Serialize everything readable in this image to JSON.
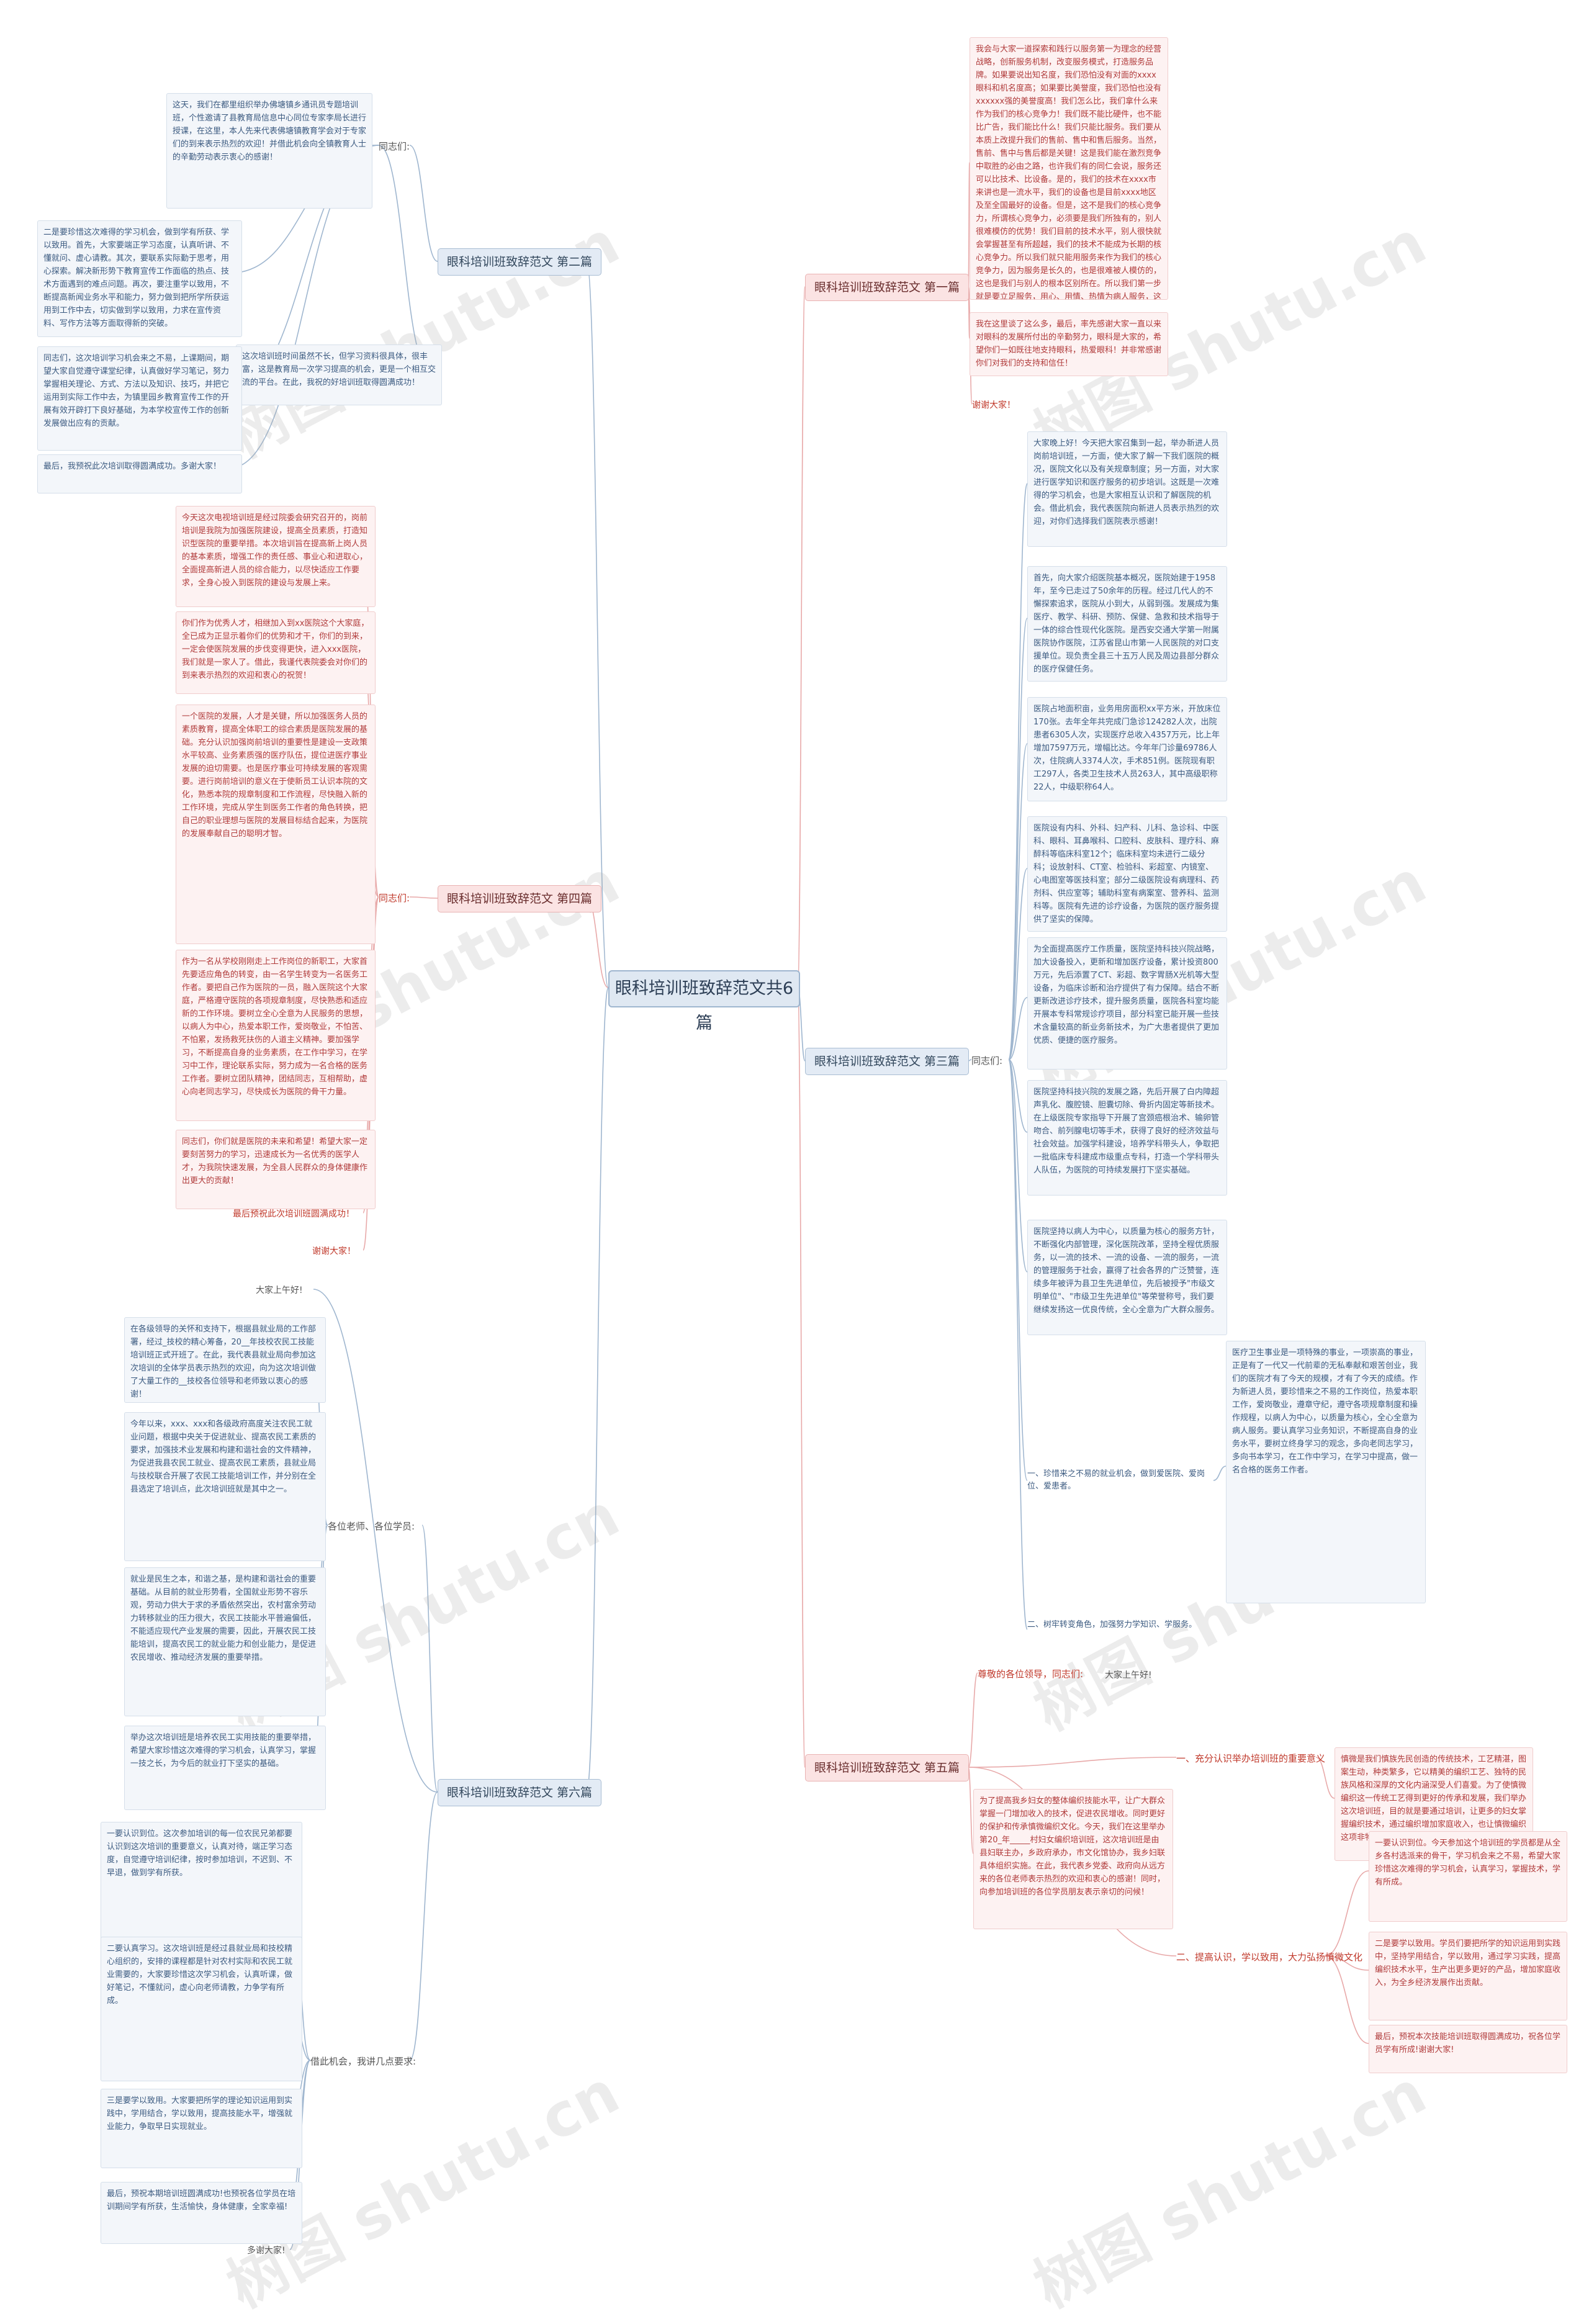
{
  "root": "眼科培训班致辞范文共6篇",
  "watermark": "树图 shutu.cn",
  "branches": [
    {
      "id": "b1",
      "label": "眼科培训班致辞范文 第一篇",
      "tone": "pink"
    },
    {
      "id": "b2",
      "label": "眼科培训班致辞范文 第二篇",
      "tone": "blue"
    },
    {
      "id": "b3",
      "label": "眼科培训班致辞范文 第三篇",
      "tone": "blue"
    },
    {
      "id": "b4",
      "label": "眼科培训班致辞范文 第四篇",
      "tone": "pink"
    },
    {
      "id": "b5",
      "label": "眼科培训班致辞范文 第五篇",
      "tone": "pink"
    },
    {
      "id": "b6",
      "label": "眼科培训班致辞范文 第六篇",
      "tone": "blue"
    }
  ],
  "labels": {
    "b2_greet": "同志们:",
    "b3_greet": "同志们:",
    "b4_greet": "同志们:",
    "b5_greet": "尊敬的各位领导，同志们:",
    "b5_greet_tail": "大家上午好!",
    "b6_greet": "大家上午好!",
    "b6_sub1": "各位老师、各位学员:",
    "b6_sub2": "借此机会，我讲几点要求:",
    "b3_sub1": "一、珍惜来之不易的就业机会，做到爱医院、爱岗位、爱患者。",
    "b3_sub2": "二、树牢转变角色，加强努力学知识、学服务。",
    "b5_sub1": "一、充分认识举办培训班的重要意义",
    "b5_sub2": "二、提高认识，学以致用，大力弘扬慎微文化"
  },
  "notes": {
    "b1_1": "我会与大家一道探索和践行以服务第一为理念的经营战略，创新服务机制，改变服务模式，打造服务品牌。如果要说出知名度，我们恐怕没有对面的xxxx眼科和机名度高；如果要比美誉度，我们恐怕也没有xxxxxx强的美誉度高！我们怎么比，我们拿什么来作为我们的核心竞争力！我们既不能比硬件，也不能比广告，我们能比什么！我们只能比服务。我们要从本质上改提升我们的售前、售中和售后服务。当然，售前、售中与售后都是关键！这是我们能在激烈竞争中取胜的必由之路，也许我们有的同仁会说，服务还可以比技术、比设备。是的，我们的技术在xxxx市来讲也是一流水平，我们的设备也是目前xxxx地区及至全国最好的设备。但是，这不是我们的核心竞争力，所谓核心竞争力，必须要是我们所独有的，别人很难模仿的优势！我们目前的技术水平，别人很快就会掌握甚至有所超越，我们的技术不能成为长期的核心竞争力。所以我们就只能用服务来作为我们的核心竞争力，因为服务是长久的，也是很难被人模仿的，这也是我们与别人的根本区别所在。所以我们第一步就是要立足服务，用心、用情、热情为病人服务，这样我们才能在竞争中立于不败之地！",
    "b1_2": "我在这里谈了这么多，最后，率先感谢大家一直以来对眼科的发展所付出的辛勤努力，眼科是大家的，希望你们一如既往地支持眼科，热爱眼科！并非常感谢你们对我们的支持和信任！",
    "b1_tail": "谢谢大家！",
    "b2_1": "这天，我们在都里组织举办佛塘镇乡通讯员专题培训班，个性邀请了县教育局信息中心同位专家李局长进行授课，在这里，本人先来代表佛塘镇教育学会对于专家们的到来表示热烈的欢迎！并借此机会向全镇教育人士的辛勤劳动表示衷心的感谢！",
    "b2_2": "二是要珍惜这次难得的学习机会，做到学有所获、学以致用。首先，大家要端正学习态度，认真听讲、不懂就问、虚心请教。其次，要联系实际勤于思考，用心探索。解决新形势下教育宣传工作面临的热点、技术方面遇到的难点问题。再次，要注重学以致用，不断提高新闻业务水平和能力，努力做到把所学所获运用到工作中去，切实做到学以致用，力求在宣传资料、写作方法等方面取得新的突破。",
    "b2_3": "这次培训班时间虽然不长，但学习资料很具体，很丰富，这是教育局一次学习提高的机会，更是一个相互交流的平台。在此，我祝的好培训班取得圆满成功！",
    "b2_4": "同志们，这次培训学习机会来之不易，上课期间，期望大家自觉遵守课堂纪律，认真做好学习笔记，努力掌握相关理论、方式、方法以及知识、技巧，并把它运用到实际工作中去，为镇里园乡教育宣传工作的开展有效开辟打下良好基础，为本学校宣传工作的创新发展做出应有的贡献。",
    "b2_5": "最后，我预祝此次培训取得圆满成功。多谢大家！",
    "b3_1": "大家晚上好！今天把大家召集到一起，举办新进人员岗前培训班，一方面，使大家了解一下我们医院的概况，医院文化以及有关规章制度；另一方面，对大家进行医学知识和医疗服务的初步培训。这既是一次难得的学习机会，也是大家相互认识和了解医院的机会。借此机会，我代表医院向新进人员表示热烈的欢迎，对你们选择我们医院表示感谢！",
    "b3_2": "首先，向大家介绍医院基本概况，医院始建于1958年，至今已走过了50余年的历程。经过几代人的不懈探索追求，医院从小到大，从弱到强。发展成为集医疗、教学、科研、预防、保健、急救和技术指导于一体的综合性现代化医院。是西安交通大学第一附属医院协作医院，江苏省昆山市第一人民医院的对口支援单位。现负责全县三十五万人民及周边县部分群众的医疗保健任务。",
    "b3_3": "医院占地面积亩，业务用房面积xx平方米，开放床位170张。去年全年共完成门急诊124282人次，出院患者6305人次，实现医疗总收入4357万元，比上年增加7597万元，增幅比达。今年年门诊量69786人次，住院病人3374人次，手术851例。医院现有职工297人，各类卫生技术人员263人，其中高级职称22人，中级职称64人。",
    "b3_4": "医院设有内科、外科、妇产科、儿科、急诊科、中医科、眼科、耳鼻喉科、口腔科、皮肤科、理疗科、麻醉科等临床科室12个；临床科室均未进行二级分科；设放射科、CT室、检验科、彩超室、内镜室、心电图室等医技科室；部分二级医院设有病理科、药剂科、供应室等；辅助科室有病案室、营养科、监测科等。医院有先进的诊疗设备，为医院的医疗服务提供了坚实的保障。",
    "b3_5": "为全面提高医疗工作质量，医院坚持科技兴院战略，加大设备投入，更新和增加医疗设备，累计投资800万元，先后添置了CT、彩超、数字胃肠X光机等大型设备，为临床诊断和治疗提供了有力保障。结合不断更新改进诊疗技术，提升服务质量，医院各科室均能开展本专科常规诊疗项目，部分科室已能开展一些技术含量较高的新业务新技术，为广大患者提供了更加优质、便捷的医疗服务。",
    "b3_6": "医院坚持科技兴院的发展之路，先后开展了白内障超声乳化、腹腔镜、胆囊切除、骨折内固定等新技术。在上级医院专家指导下开展了宫颈癌根治术、输卵管吻合、前列腺电切等手术，获得了良好的经济效益与社会效益。加强学科建设，培养学科带头人，争取把一批临床专科建成市级重点专科，打造一个学科带头人队伍，为医院的可持续发展打下坚实基础。",
    "b3_7": "医院坚持以病人为中心，以质量为核心的服务方针，不断强化内部管理，深化医院改革，坚持全程优质服务，以一流的技术、一流的设备、一流的服务，一流的管理服务于社会，赢得了社会各界的广泛赞誉，连续多年被评为县卫生先进单位，先后被授予\"市级文明单位\"、\"市级卫生先进单位\"等荣誉称号，我们要继续发扬这一优良传统，全心全意为广大群众服务。",
    "b3_8": "医疗卫生事业是一项特殊的事业，一项崇高的事业，正是有了一代又一代前辈的无私奉献和艰苦创业，我们的医院才有了今天的规模，才有了今天的成绩。作为新进人员，要珍惜来之不易的工作岗位，热爱本职工作，爱岗敬业，遵章守纪，遵守各项规章制度和操作规程，以病人为中心，以质量为核心，全心全意为病人服务。要认真学习业务知识，不断提高自身的业务水平，要树立终身学习的观念，多向老同志学习，多向书本学习，在工作中学习，在学习中提高，做一名合格的医务工作者。",
    "b4_1": "今天这次电视培训班是经过院委会研究召开的，岗前培训是我院为加强医院建设，提高全员素质，打造知识型医院的重要举措。本次培训旨在提高新上岗人员的基本素质，增强工作的责任感、事业心和进取心，全面提高新进人员的综合能力，以尽快适应工作要求，全身心投入到医院的建设与发展上来。",
    "b4_2": "你们作为优秀人才，相继加入到xx医院这个大家庭，全已成为正显示着你们的优势和才干，你们的到来，一定会使医院发展的步伐变得更快，进入xxx医院，我们就是一家人了。借此，我谨代表院委会对你们的到来表示热烈的欢迎和衷心的祝贺！",
    "b4_3": "一个医院的发展，人才是关键，所以加强医务人员的素质教育，提高全体职工的综合素质是医院发展的基础。充分认识加强岗前培训的重要性是建设一支政策水平较高、业务素质强的医疗队伍，提位进医疗事业发展的迫切需要。也是医疗事业可持续发展的客观需要。进行岗前培训的意义在于使新员工认识本院的文化，熟悉本院的规章制度和工作流程，尽快融入新的工作环境，完成从学生到医务工作者的角色转换，把自己的职业理想与医院的发展目标结合起来，为医院的发展奉献自己的聪明才智。",
    "b4_4": "作为一名从学校刚刚走上工作岗位的新职工，大家首先要适应角色的转变，由一名学生转变为一名医务工作者。要把自己作为医院的一员，融入医院这个大家庭，严格遵守医院的各项规章制度，尽快熟悉和适应新的工作环境。要树立全心全意为人民服务的思想，以病人为中心，热爱本职工作，爱岗敬业，不怕苦、不怕累，发扬救死扶伤的人道主义精神。要加强学习，不断提高自身的业务素质，在工作中学习，在学习中工作，理论联系实际，努力成为一名合格的医务工作者。要树立团队精神，团结同志，互相帮助，虚心向老同志学习，尽快成长为医院的骨干力量。",
    "b4_5": "同志们，你们就是医院的未来和希望！希望大家一定要刻苦努力的学习，迅速成长为一名优秀的医学人才，为我院快速发展，为全县人民群众的身体健康作出更大的贡献！",
    "b4_tail1": "最后预祝此次培训班圆满成功！",
    "b4_tail2": "谢谢大家！",
    "b5_1": "为了提高我乡妇女的整体编织技能水平，让广大群众掌握一门增加收入的技术，促进农民增收。同时更好的保护和传承慎微编织文化。今天，我们在这里举办第20_年_____村妇女编织培训班，这次培训班是由县妇联主办，乡政府承办，市文化馆协办，我乡妇联具体组织实施。在此，我代表乡党委、政府向从远方来的各位老师表示热烈的欢迎和衷心的感谢！同时，向参加培训班的各位学员朋友表示亲切的问候！",
    "b5_2": "慎微是我们慎族先民创造的传统技术，工艺精湛，图案生动，种类繁多，它以精美的编织工艺、独特的民族风格和深厚的文化内涵深受人们喜爱。为了使慎微编织这一传统工艺得到更好的传承和发展，我们举办这次培训班，目的就是要通过培训，让更多的妇女掌握编织技术，通过编织增加家庭收入，也让慎微编织这项非物质文化遗产得到更好的保护和传承。",
    "b5_3": "一要认识到位。今天参加这个培训班的学员都是从全乡各村选派来的骨干，学习机会来之不易，希望大家珍惜这次难得的学习机会，认真学习，掌握技术，学有所成。",
    "b5_4": "二是要学以致用。学员们要把所学的知识运用到实践中，坚持学用结合，学以致用，通过学习实践，提高编织技术水平，生产出更多更好的产品，增加家庭收入，为全乡经济发展作出贡献。",
    "b5_5": "最后，预祝本次技能培训班取得圆满成功，祝各位学员学有所成!谢谢大家!",
    "b6_1": "在各级领导的关怀和支持下，根据县就业局的工作部署，经过_技校的精心筹备，20__年技校农民工技能培训班正式开班了。在此，我代表县就业局向参加这次培训的全体学员表示热烈的欢迎，向为这次培训做了大量工作的__技校各位领导和老师致以衷心的感谢！",
    "b6_2": "今年以来，xxx、xxx和各级政府高度关注农民工就业问题，根据中央关于促进就业、提高农民工素质的要求，加强技术业发展和构建和谐社会的文件精神，为促进我县农民工就业、提高农民工素质，县就业局与技校联合开展了农民工技能培训工作，并分别在全县选定了培训点，此次培训班就是其中之一。",
    "b6_3": "就业是民生之本，和谐之基，是构建和谐社会的重要基础。从目前的就业形势看，全国就业形势不容乐观，劳动力供大于求的矛盾依然突出，农村富余劳动力转移就业的压力很大，农民工技能水平普遍偏低，不能适应现代产业发展的需要，因此，开展农民工技能培训，提高农民工的就业能力和创业能力，是促进农民增收、推动经济发展的重要举措。",
    "b6_4": "举办这次培训班是培养农民工实用技能的重要举措，希望大家珍惜这次难得的学习机会，认真学习，掌握一技之长，为今后的就业打下坚实的基础。",
    "b6_5": "一要认识到位。这次参加培训的每一位农民兄弟都要认识到这次培训的重要意义，认真对待，端正学习态度，自觉遵守培训纪律，按时参加培训，不迟到、不早退，做到学有所获。",
    "b6_6": "二要认真学习。这次培训班是经过县就业局和技校精心组织的，安排的课程都是针对农村实际和农民工就业需要的，大家要珍惜这次学习机会，认真听课，做好笔记，不懂就问，虚心向老师请教，力争学有所成。",
    "b6_7": "三是要学以致用。大家要把所学的理论知识运用到实践中，学用结合，学以致用，提高技能水平，增强就业能力，争取早日实现就业。",
    "b6_8": "最后，预祝本期培训班圆满成功!也预祝各位学员在培训期间学有所获，生活愉快，身体健康，全家幸福!",
    "b6_tail": "多谢大家!"
  }
}
